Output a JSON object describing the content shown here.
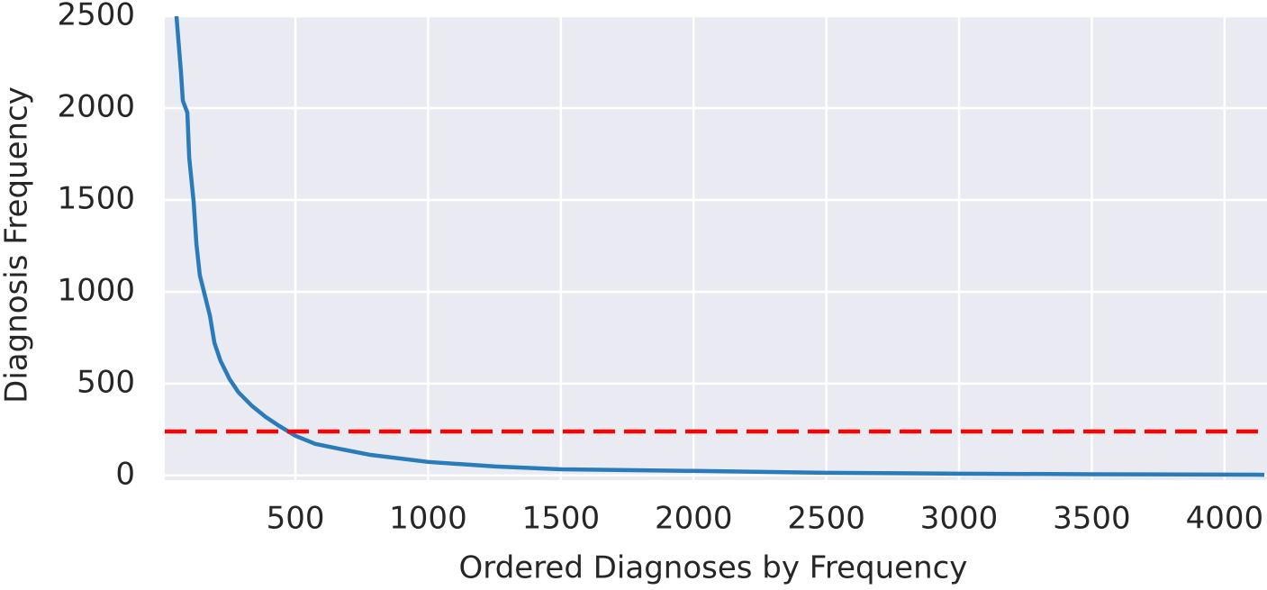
{
  "chart_data": {
    "type": "line",
    "xlabel": "Ordered Diagnoses by Frequency",
    "ylabel": "Diagnosis Frequency",
    "x": [
      52,
      69,
      76,
      93,
      100,
      117,
      127,
      140,
      161,
      178,
      195,
      218,
      252,
      286,
      337,
      388,
      439,
      500,
      575,
      677,
      779,
      1000,
      1254,
      1500,
      2000,
      2500,
      3000,
      3500,
      4000,
      4150
    ],
    "series": [
      {
        "color": "#2a7bb9",
        "values": [
          2500,
          2195,
          2040,
          1975,
          1730,
          1485,
          1262,
          1090,
          968,
          870,
          722,
          624,
          525,
          452,
          378,
          319,
          270,
          216,
          172,
          142,
          113,
          74,
          49,
          34,
          25,
          15,
          10,
          7,
          5,
          4
        ]
      }
    ],
    "hline": {
      "value": 240,
      "color": "#ff0000"
    },
    "xlim": [
      8,
      4160
    ],
    "ylim": [
      -25,
      2500
    ],
    "xticks": [
      500,
      1000,
      1500,
      2000,
      2500,
      3000,
      3500,
      4000
    ],
    "yticks": [
      0,
      500,
      1000,
      1500,
      2000,
      2500
    ],
    "grid": true
  }
}
